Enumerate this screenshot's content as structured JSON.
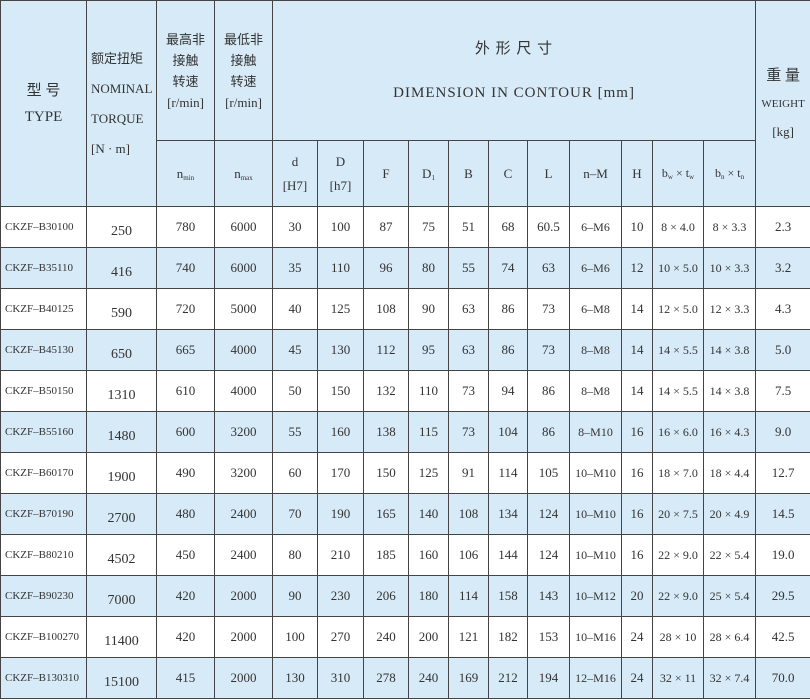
{
  "header": {
    "type_cn": "型 号",
    "type_en": "TYPE",
    "torque_cn": "额定扭矩",
    "torque_en1": "NOMINAL",
    "torque_en2": "TORQUE",
    "torque_unit": "[N · m]",
    "nmin_cn1": "最高非",
    "nmin_cn2": "接触",
    "nmin_cn3": "转速",
    "nmin_unit": "[r/min]",
    "nmax_cn1": "最低非",
    "nmax_cn2": "接触",
    "nmax_cn3": "转速",
    "nmax_unit": "[r/min]",
    "dim_cn": "外 形 尺 寸",
    "dim_en": "DIMENSION  IN  CONTOUR [mm]",
    "weight_cn": "重 量",
    "weight_en": "WEIGHT",
    "weight_unit": "[kg]",
    "nmin": {
      "base": "n",
      "sub": "min"
    },
    "nmax": {
      "base": "n",
      "sub": "max"
    },
    "d": {
      "label": "d",
      "tol": "[H7]"
    },
    "D": {
      "label": "D",
      "tol": "[h7]"
    },
    "F": "F",
    "D1": {
      "base": "D",
      "sub": "1"
    },
    "B": "B",
    "C": "C",
    "L": "L",
    "nM": "n–M",
    "H": "H",
    "bwtw": {
      "b": "b",
      "bsub": "w",
      "x": " × t",
      "tsub": "w"
    },
    "bntn": {
      "b": "b",
      "bsub": "n",
      "x": " × t",
      "tsub": "n"
    }
  },
  "rows": [
    [
      "CKZF–B30100",
      "250",
      "780",
      "6000",
      "30",
      "100",
      "87",
      "75",
      "51",
      "68",
      "60.5",
      "6–M6",
      "10",
      "8 × 4.0",
      "8 × 3.3",
      "2.3"
    ],
    [
      "CKZF–B35110",
      "416",
      "740",
      "6000",
      "35",
      "110",
      "96",
      "80",
      "55",
      "74",
      "63",
      "6–M6",
      "12",
      "10 × 5.0",
      "10 × 3.3",
      "3.2"
    ],
    [
      "CKZF–B40125",
      "590",
      "720",
      "5000",
      "40",
      "125",
      "108",
      "90",
      "63",
      "86",
      "73",
      "6–M8",
      "14",
      "12 × 5.0",
      "12 × 3.3",
      "4.3"
    ],
    [
      "CKZF–B45130",
      "650",
      "665",
      "4000",
      "45",
      "130",
      "112",
      "95",
      "63",
      "86",
      "73",
      "8–M8",
      "14",
      "14 × 5.5",
      "14 × 3.8",
      "5.0"
    ],
    [
      "CKZF–B50150",
      "1310",
      "610",
      "4000",
      "50",
      "150",
      "132",
      "110",
      "73",
      "94",
      "86",
      "8–M8",
      "14",
      "14 × 5.5",
      "14 × 3.8",
      "7.5"
    ],
    [
      "CKZF–B55160",
      "1480",
      "600",
      "3200",
      "55",
      "160",
      "138",
      "115",
      "73",
      "104",
      "86",
      "8–M10",
      "16",
      "16 × 6.0",
      "16 × 4.3",
      "9.0"
    ],
    [
      "CKZF–B60170",
      "1900",
      "490",
      "3200",
      "60",
      "170",
      "150",
      "125",
      "91",
      "114",
      "105",
      "10–M10",
      "16",
      "18 × 7.0",
      "18 × 4.4",
      "12.7"
    ],
    [
      "CKZF–B70190",
      "2700",
      "480",
      "2400",
      "70",
      "190",
      "165",
      "140",
      "108",
      "134",
      "124",
      "10–M10",
      "16",
      "20 × 7.5",
      "20 × 4.9",
      "14.5"
    ],
    [
      "CKZF–B80210",
      "4502",
      "450",
      "2400",
      "80",
      "210",
      "185",
      "160",
      "106",
      "144",
      "124",
      "10–M10",
      "16",
      "22 × 9.0",
      "22 × 5.4",
      "19.0"
    ],
    [
      "CKZF–B90230",
      "7000",
      "420",
      "2000",
      "90",
      "230",
      "206",
      "180",
      "114",
      "158",
      "143",
      "10–M12",
      "20",
      "22 × 9.0",
      "25 × 5.4",
      "29.5"
    ],
    [
      "CKZF–B100270",
      "11400",
      "420",
      "2000",
      "100",
      "270",
      "240",
      "200",
      "121",
      "182",
      "153",
      "10–M16",
      "24",
      "28 × 10",
      "28 × 6.4",
      "42.5"
    ],
    [
      "CKZF–B130310",
      "15100",
      "415",
      "2000",
      "130",
      "310",
      "278",
      "240",
      "169",
      "212",
      "194",
      "12–M16",
      "24",
      "32 × 11",
      "32 × 7.4",
      "70.0"
    ]
  ],
  "colors": {
    "header_bg": "#d7eaf7",
    "stripe_bg": "#d7eaf7",
    "border": "#444444"
  }
}
